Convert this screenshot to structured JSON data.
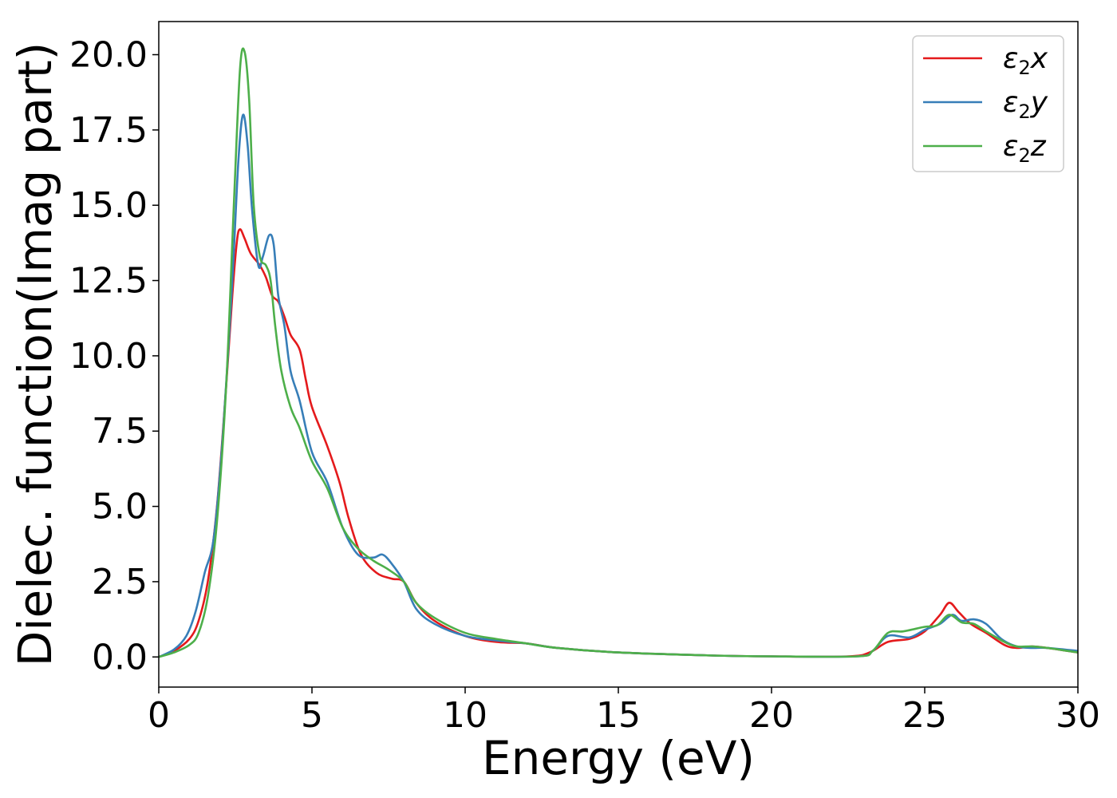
{
  "chart_data": {
    "type": "line",
    "xlabel": "Energy (eV)",
    "ylabel": "Dielec. function(Imag part)",
    "xlim": [
      0,
      30
    ],
    "ylim": [
      -1,
      21.1
    ],
    "x_ticks": [
      0,
      5,
      10,
      15,
      20,
      25,
      30
    ],
    "x_tick_labels": [
      "0",
      "5",
      "10",
      "15",
      "20",
      "25",
      "30"
    ],
    "y_ticks": [
      0,
      2.5,
      5,
      7.5,
      10,
      12.5,
      15,
      17.5,
      20
    ],
    "y_tick_labels": [
      "0.0",
      "2.5",
      "5.0",
      "7.5",
      "10.0",
      "12.5",
      "15.0",
      "17.5",
      "20.0"
    ],
    "grid": false,
    "legend": "top-right",
    "series": [
      {
        "name": "ε₂x",
        "legend": {
          "sym": "ε",
          "sub": "2",
          "comp": "x"
        },
        "color": "#e41a1c",
        "points": [
          [
            0,
            0
          ],
          [
            0.5,
            0.2
          ],
          [
            1.0,
            0.6
          ],
          [
            1.3,
            1.2
          ],
          [
            1.6,
            2.5
          ],
          [
            1.9,
            5.0
          ],
          [
            2.2,
            9.0
          ],
          [
            2.4,
            12.0
          ],
          [
            2.55,
            13.8
          ],
          [
            2.65,
            14.2
          ],
          [
            2.8,
            13.9
          ],
          [
            3.0,
            13.4
          ],
          [
            3.3,
            13.0
          ],
          [
            3.5,
            12.6
          ],
          [
            3.7,
            12.0
          ],
          [
            3.9,
            11.8
          ],
          [
            4.1,
            11.3
          ],
          [
            4.3,
            10.7
          ],
          [
            4.6,
            10.2
          ],
          [
            4.8,
            9.2
          ],
          [
            5.0,
            8.3
          ],
          [
            5.5,
            7.0
          ],
          [
            5.9,
            5.8
          ],
          [
            6.2,
            4.6
          ],
          [
            6.6,
            3.4
          ],
          [
            7.1,
            2.8
          ],
          [
            7.6,
            2.6
          ],
          [
            8.0,
            2.5
          ],
          [
            8.4,
            1.8
          ],
          [
            9.0,
            1.2
          ],
          [
            10.0,
            0.7
          ],
          [
            11.0,
            0.5
          ],
          [
            12.0,
            0.45
          ],
          [
            13.0,
            0.3
          ],
          [
            15.0,
            0.15
          ],
          [
            18.0,
            0.05
          ],
          [
            20.0,
            0.02
          ],
          [
            22.5,
            0.02
          ],
          [
            23.2,
            0.15
          ],
          [
            23.8,
            0.5
          ],
          [
            24.5,
            0.6
          ],
          [
            25.0,
            0.85
          ],
          [
            25.5,
            1.4
          ],
          [
            25.8,
            1.8
          ],
          [
            26.1,
            1.5
          ],
          [
            26.5,
            1.1
          ],
          [
            27.0,
            0.8
          ],
          [
            27.6,
            0.4
          ],
          [
            28.0,
            0.3
          ],
          [
            28.5,
            0.35
          ],
          [
            29.0,
            0.3
          ],
          [
            30.0,
            0.15
          ]
        ]
      },
      {
        "name": "ε₂y",
        "legend": {
          "sym": "ε",
          "sub": "2",
          "comp": "y"
        },
        "color": "#377eb8",
        "points": [
          [
            0,
            0
          ],
          [
            0.5,
            0.25
          ],
          [
            0.9,
            0.7
          ],
          [
            1.2,
            1.5
          ],
          [
            1.5,
            2.8
          ],
          [
            1.8,
            4.0
          ],
          [
            2.1,
            7.5
          ],
          [
            2.4,
            12.5
          ],
          [
            2.6,
            16.5
          ],
          [
            2.75,
            18.0
          ],
          [
            2.9,
            17.0
          ],
          [
            3.05,
            14.8
          ],
          [
            3.25,
            13.0
          ],
          [
            3.4,
            13.3
          ],
          [
            3.6,
            14.0
          ],
          [
            3.75,
            13.7
          ],
          [
            3.9,
            12.0
          ],
          [
            4.1,
            11.0
          ],
          [
            4.3,
            9.5
          ],
          [
            4.6,
            8.5
          ],
          [
            5.0,
            6.8
          ],
          [
            5.5,
            5.8
          ],
          [
            6.0,
            4.3
          ],
          [
            6.5,
            3.4
          ],
          [
            7.0,
            3.3
          ],
          [
            7.3,
            3.4
          ],
          [
            7.6,
            3.1
          ],
          [
            8.0,
            2.5
          ],
          [
            8.4,
            1.6
          ],
          [
            9.0,
            1.1
          ],
          [
            10.0,
            0.7
          ],
          [
            11.0,
            0.55
          ],
          [
            12.0,
            0.45
          ],
          [
            13.0,
            0.3
          ],
          [
            15.0,
            0.15
          ],
          [
            18.0,
            0.05
          ],
          [
            20.0,
            0.02
          ],
          [
            22.8,
            0.02
          ],
          [
            23.3,
            0.2
          ],
          [
            23.8,
            0.7
          ],
          [
            24.5,
            0.65
          ],
          [
            25.0,
            0.9
          ],
          [
            25.5,
            1.1
          ],
          [
            25.9,
            1.4
          ],
          [
            26.2,
            1.2
          ],
          [
            26.6,
            1.25
          ],
          [
            27.0,
            1.1
          ],
          [
            27.5,
            0.6
          ],
          [
            28.0,
            0.35
          ],
          [
            28.5,
            0.3
          ],
          [
            29.0,
            0.3
          ],
          [
            30.0,
            0.2
          ]
        ]
      },
      {
        "name": "ε₂z",
        "legend": {
          "sym": "ε",
          "sub": "2",
          "comp": "z"
        },
        "color": "#4daf4a",
        "points": [
          [
            0,
            0
          ],
          [
            0.5,
            0.15
          ],
          [
            1.0,
            0.4
          ],
          [
            1.3,
            0.8
          ],
          [
            1.6,
            2.0
          ],
          [
            1.9,
            4.5
          ],
          [
            2.2,
            9.0
          ],
          [
            2.45,
            15.0
          ],
          [
            2.65,
            19.5
          ],
          [
            2.8,
            20.1
          ],
          [
            2.95,
            18.5
          ],
          [
            3.1,
            15.0
          ],
          [
            3.3,
            13.3
          ],
          [
            3.5,
            13.0
          ],
          [
            3.65,
            12.5
          ],
          [
            3.8,
            11.0
          ],
          [
            4.0,
            9.5
          ],
          [
            4.3,
            8.3
          ],
          [
            4.6,
            7.6
          ],
          [
            5.0,
            6.5
          ],
          [
            5.5,
            5.6
          ],
          [
            6.0,
            4.3
          ],
          [
            6.5,
            3.6
          ],
          [
            7.0,
            3.2
          ],
          [
            7.5,
            2.9
          ],
          [
            8.0,
            2.5
          ],
          [
            8.4,
            1.8
          ],
          [
            9.0,
            1.3
          ],
          [
            10.0,
            0.8
          ],
          [
            11.0,
            0.6
          ],
          [
            12.0,
            0.45
          ],
          [
            13.0,
            0.3
          ],
          [
            15.0,
            0.15
          ],
          [
            18.0,
            0.05
          ],
          [
            20.0,
            0.02
          ],
          [
            22.8,
            0.02
          ],
          [
            23.3,
            0.2
          ],
          [
            23.8,
            0.8
          ],
          [
            24.3,
            0.85
          ],
          [
            25.0,
            1.0
          ],
          [
            25.4,
            1.05
          ],
          [
            25.8,
            1.4
          ],
          [
            26.2,
            1.15
          ],
          [
            26.6,
            1.1
          ],
          [
            27.0,
            0.85
          ],
          [
            27.6,
            0.5
          ],
          [
            28.0,
            0.35
          ],
          [
            28.5,
            0.35
          ],
          [
            29.0,
            0.3
          ],
          [
            30.0,
            0.15
          ]
        ]
      }
    ]
  }
}
